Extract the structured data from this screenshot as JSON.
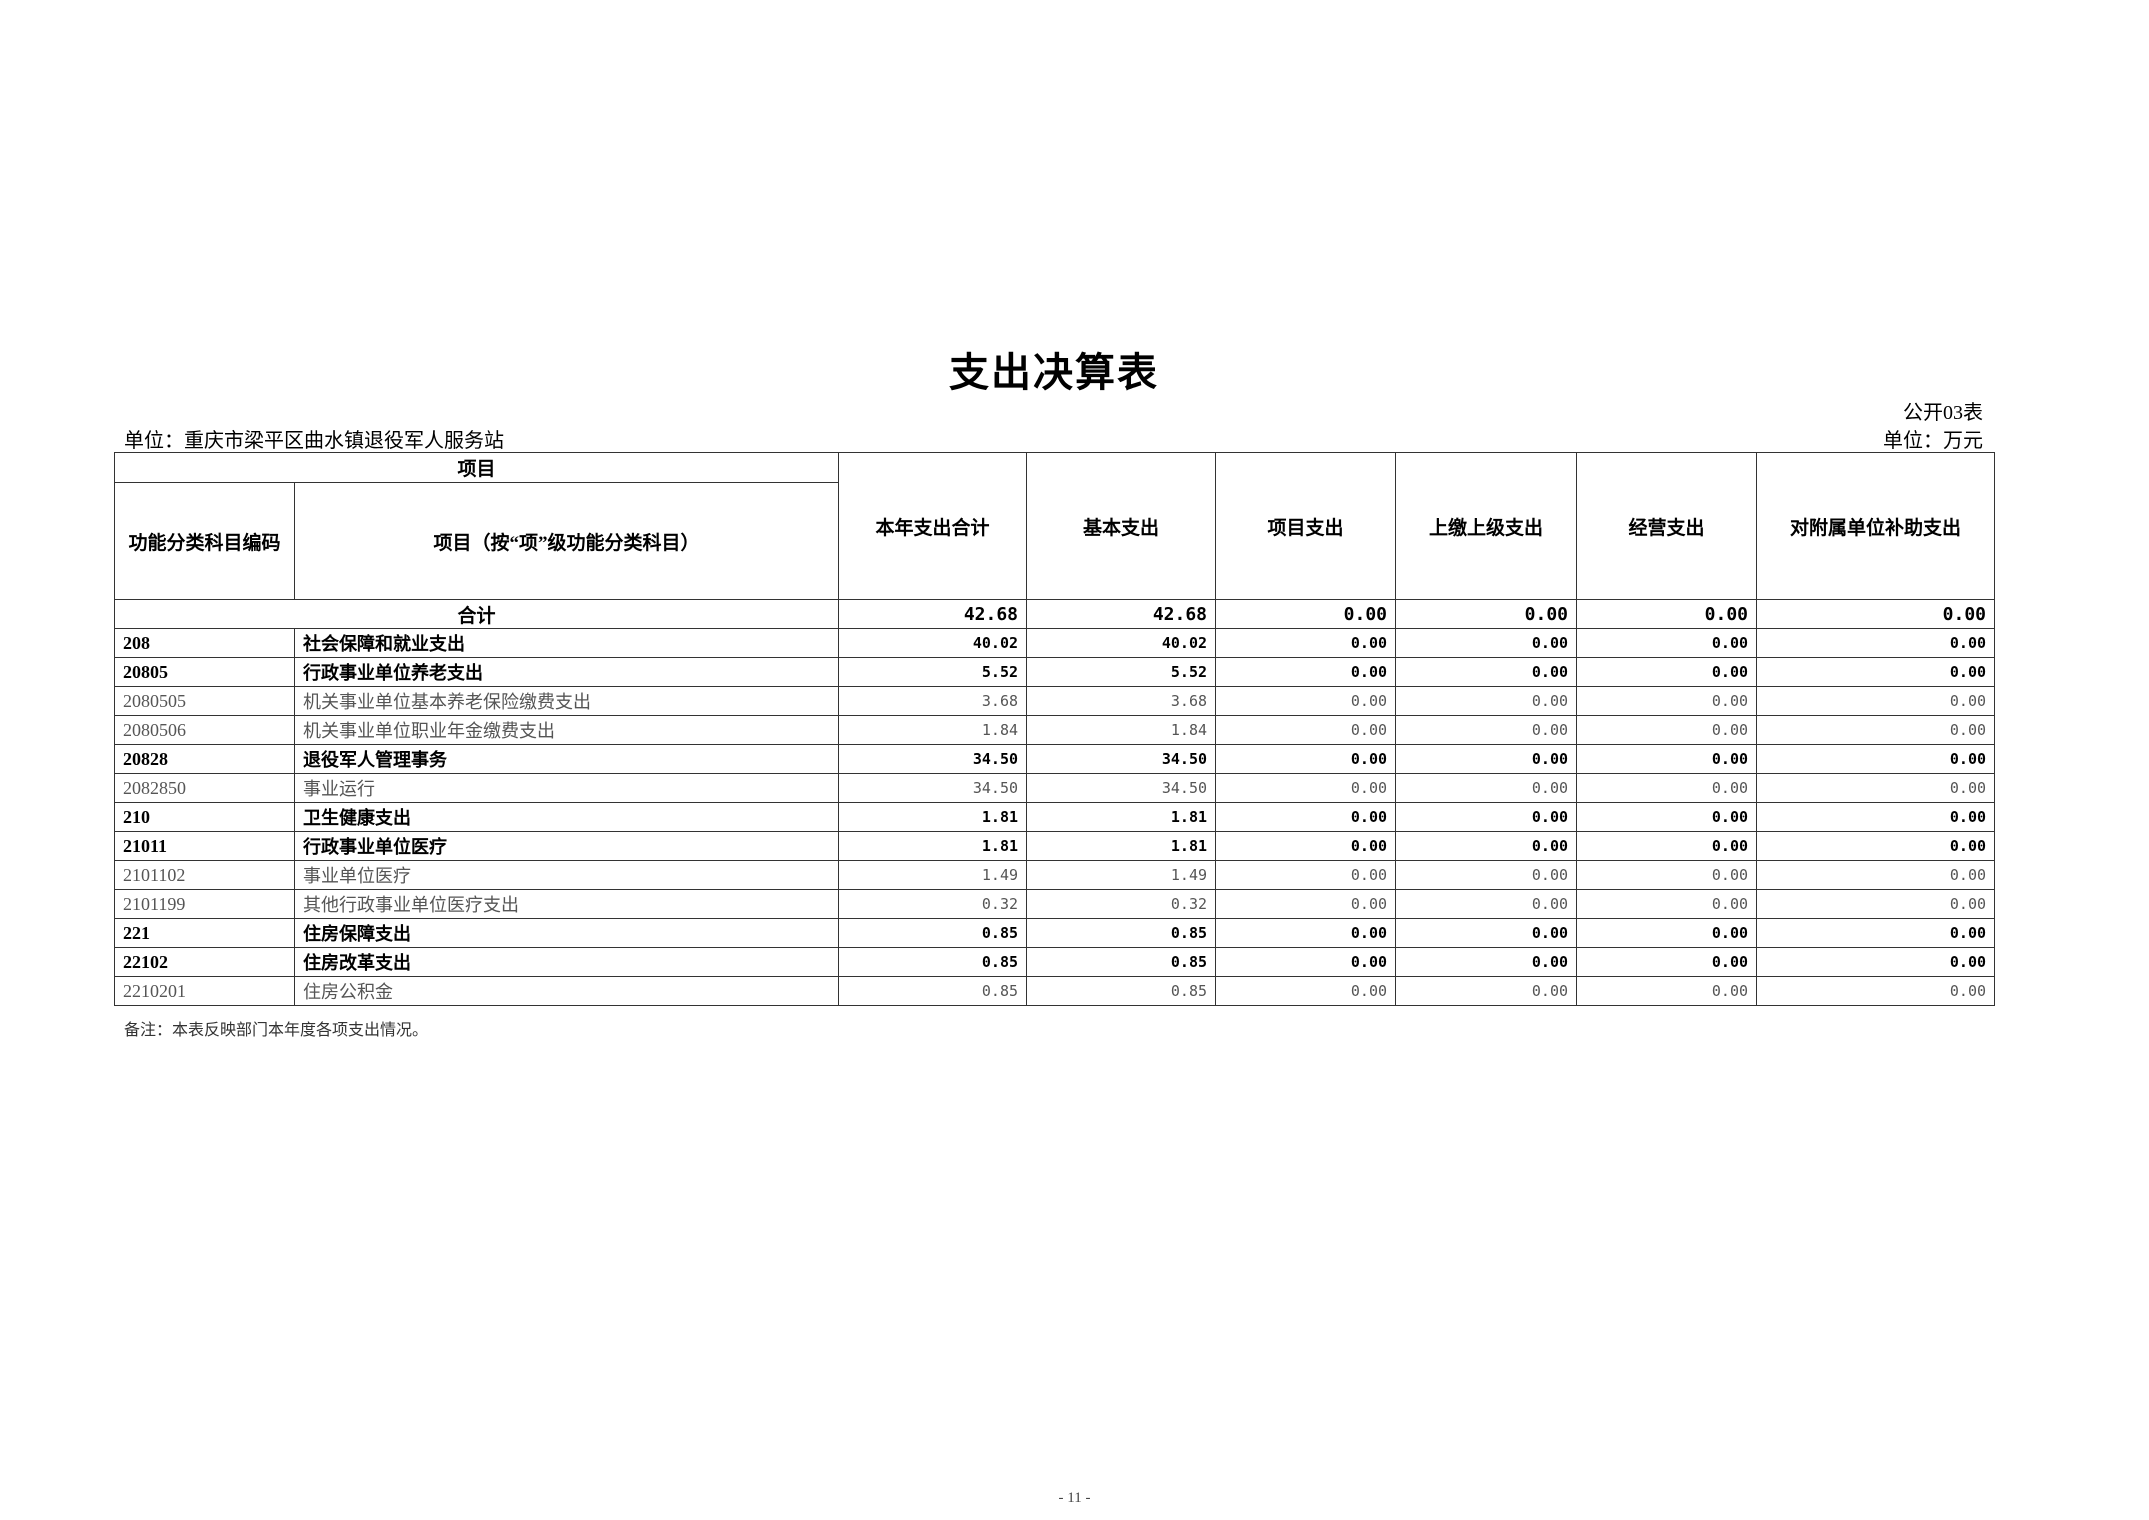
{
  "document": {
    "title": "支出决算表",
    "form_no": "公开03表",
    "unit_org": "单位：重庆市梁平区曲水镇退役军人服务站",
    "unit_currency": "单位：万元",
    "note": "备注：本表反映部门本年度各项支出情况。",
    "page_number": "- 11 -"
  },
  "table": {
    "header_group": "项目",
    "headers": [
      "功能分类科目编码",
      "项目（按“项”级功能分类科目）",
      "本年支出合计",
      "基本支出",
      "项目支出",
      "上缴上级支出",
      "经营支出",
      "对附属单位补助支出"
    ],
    "total": {
      "label": "合计",
      "values": [
        "42.68",
        "42.68",
        "0.00",
        "0.00",
        "0.00",
        "0.00"
      ]
    },
    "rows": [
      {
        "code": "208",
        "name": "社会保障和就业支出",
        "bold": true,
        "values": [
          "40.02",
          "40.02",
          "0.00",
          "0.00",
          "0.00",
          "0.00"
        ]
      },
      {
        "code": "20805",
        "name": "行政事业单位养老支出",
        "bold": true,
        "values": [
          "5.52",
          "5.52",
          "0.00",
          "0.00",
          "0.00",
          "0.00"
        ]
      },
      {
        "code": "2080505",
        "name": "机关事业单位基本养老保险缴费支出",
        "bold": false,
        "values": [
          "3.68",
          "3.68",
          "0.00",
          "0.00",
          "0.00",
          "0.00"
        ]
      },
      {
        "code": "2080506",
        "name": "机关事业单位职业年金缴费支出",
        "bold": false,
        "values": [
          "1.84",
          "1.84",
          "0.00",
          "0.00",
          "0.00",
          "0.00"
        ]
      },
      {
        "code": "20828",
        "name": "退役军人管理事务",
        "bold": true,
        "values": [
          "34.50",
          "34.50",
          "0.00",
          "0.00",
          "0.00",
          "0.00"
        ]
      },
      {
        "code": "2082850",
        "name": "事业运行",
        "bold": false,
        "values": [
          "34.50",
          "34.50",
          "0.00",
          "0.00",
          "0.00",
          "0.00"
        ]
      },
      {
        "code": "210",
        "name": "卫生健康支出",
        "bold": true,
        "values": [
          "1.81",
          "1.81",
          "0.00",
          "0.00",
          "0.00",
          "0.00"
        ]
      },
      {
        "code": "21011",
        "name": "行政事业单位医疗",
        "bold": true,
        "values": [
          "1.81",
          "1.81",
          "0.00",
          "0.00",
          "0.00",
          "0.00"
        ]
      },
      {
        "code": "2101102",
        "name": "事业单位医疗",
        "bold": false,
        "values": [
          "1.49",
          "1.49",
          "0.00",
          "0.00",
          "0.00",
          "0.00"
        ]
      },
      {
        "code": "2101199",
        "name": "其他行政事业单位医疗支出",
        "bold": false,
        "values": [
          "0.32",
          "0.32",
          "0.00",
          "0.00",
          "0.00",
          "0.00"
        ]
      },
      {
        "code": "221",
        "name": "住房保障支出",
        "bold": true,
        "values": [
          "0.85",
          "0.85",
          "0.00",
          "0.00",
          "0.00",
          "0.00"
        ]
      },
      {
        "code": "22102",
        "name": "住房改革支出",
        "bold": true,
        "values": [
          "0.85",
          "0.85",
          "0.00",
          "0.00",
          "0.00",
          "0.00"
        ]
      },
      {
        "code": "2210201",
        "name": "住房公积金",
        "bold": false,
        "values": [
          "0.85",
          "0.85",
          "0.00",
          "0.00",
          "0.00",
          "0.00"
        ]
      }
    ]
  }
}
